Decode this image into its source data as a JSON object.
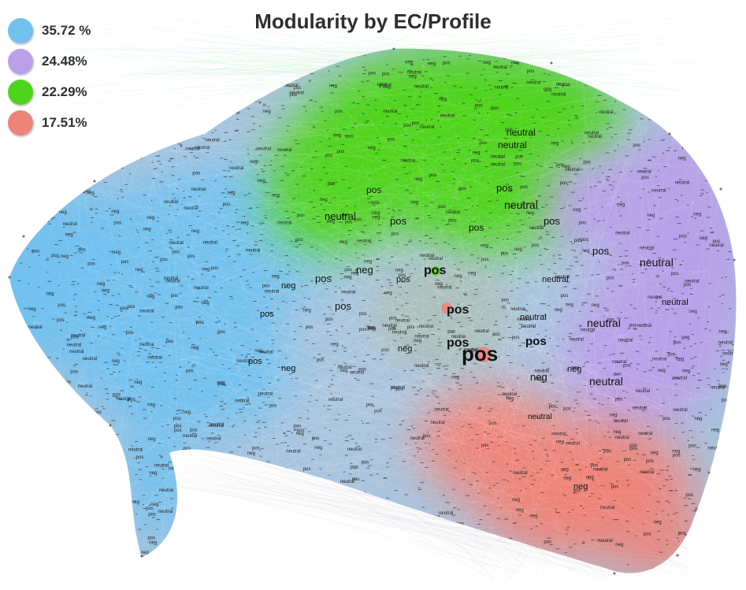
{
  "title": "Modularity by EC/Profile",
  "legend": [
    {
      "label": "35.72 %",
      "color": "#72c1ef"
    },
    {
      "label": "24.48%",
      "color": "#b9a0e8"
    },
    {
      "label": "22.29%",
      "color": "#4fd41c"
    },
    {
      "label": "17.51%",
      "color": "#ee8378"
    }
  ],
  "clusters": [
    {
      "name": "blue",
      "share": 35.72,
      "color": "#72c1ef"
    },
    {
      "name": "purple",
      "share": 24.48,
      "color": "#b9a0e8"
    },
    {
      "name": "green",
      "share": 22.29,
      "color": "#4fd41c"
    },
    {
      "name": "red",
      "share": 17.51,
      "color": "#ee8378"
    }
  ],
  "labels": {
    "pos": "pos",
    "neg": "neg",
    "neutral": "neutral"
  }
}
